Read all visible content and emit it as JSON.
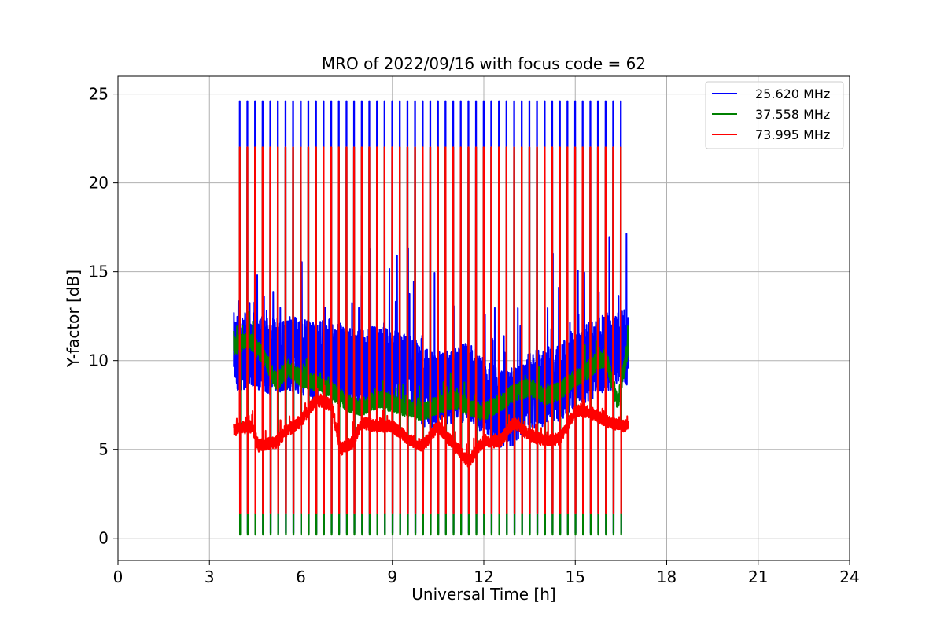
{
  "chart_data": {
    "type": "line",
    "title": "MRO of 2022/09/16 with focus code = 62",
    "xlabel": "Universal Time [h]",
    "ylabel": "Y-factor [dB]",
    "xlim": [
      0,
      24
    ],
    "ylim": [
      -1.25,
      26.0
    ],
    "xticks": [
      0,
      3,
      6,
      9,
      12,
      15,
      18,
      21,
      24
    ],
    "yticks": [
      0,
      5,
      10,
      15,
      20,
      25
    ],
    "grid": true,
    "legend_position": "top-right",
    "x_range_covered": [
      3.8,
      16.75
    ],
    "calibration_pulses": {
      "start_h": 4.0,
      "spacing_h": 0.25,
      "count": 51,
      "peak_values": {
        "25.620 MHz": 24.6,
        "37.558 MHz": 22.0,
        "73.995 MHz": 22.0
      },
      "trough_values": {
        "25.620 MHz": 0.3,
        "37.558 MHz": 0.2,
        "73.995 MHz": 1.4
      }
    },
    "series": [
      {
        "name": "25.620 MHz",
        "color": "#0000ff",
        "baseline": [
          [
            3.8,
            10.5
          ],
          [
            4.5,
            10.6
          ],
          [
            5.0,
            10.2
          ],
          [
            5.5,
            10.5
          ],
          [
            6.0,
            10.3
          ],
          [
            6.5,
            10.0
          ],
          [
            7.0,
            10.2
          ],
          [
            7.5,
            9.7
          ],
          [
            8.0,
            9.5
          ],
          [
            8.5,
            9.8
          ],
          [
            9.0,
            9.6
          ],
          [
            9.5,
            9.3
          ],
          [
            10.0,
            8.5
          ],
          [
            10.5,
            8.3
          ],
          [
            11.0,
            8.6
          ],
          [
            11.5,
            8.8
          ],
          [
            12.0,
            8.0
          ],
          [
            12.5,
            7.3
          ],
          [
            13.0,
            7.4
          ],
          [
            13.5,
            8.3
          ],
          [
            14.0,
            8.5
          ],
          [
            14.5,
            8.8
          ],
          [
            15.0,
            9.5
          ],
          [
            15.5,
            10.0
          ],
          [
            16.0,
            10.5
          ],
          [
            16.5,
            10.6
          ],
          [
            16.75,
            10.8
          ]
        ],
        "fluctuation_db": 2.2
      },
      {
        "name": "37.558 MHz",
        "color": "#008000",
        "baseline": [
          [
            3.8,
            10.8
          ],
          [
            4.3,
            11.2
          ],
          [
            4.8,
            10.2
          ],
          [
            5.2,
            8.8
          ],
          [
            5.6,
            9.6
          ],
          [
            6.0,
            9.0
          ],
          [
            6.5,
            8.7
          ],
          [
            7.0,
            8.3
          ],
          [
            7.5,
            7.6
          ],
          [
            8.0,
            7.4
          ],
          [
            8.5,
            7.8
          ],
          [
            9.0,
            7.6
          ],
          [
            9.5,
            7.3
          ],
          [
            10.0,
            7.1
          ],
          [
            10.5,
            7.5
          ],
          [
            11.0,
            7.8
          ],
          [
            11.5,
            7.4
          ],
          [
            12.0,
            7.1
          ],
          [
            12.5,
            7.6
          ],
          [
            13.0,
            8.2
          ],
          [
            13.5,
            8.5
          ],
          [
            14.0,
            8.0
          ],
          [
            14.5,
            8.3
          ],
          [
            15.0,
            9.0
          ],
          [
            15.5,
            9.6
          ],
          [
            16.0,
            10.2
          ],
          [
            16.4,
            7.6
          ],
          [
            16.75,
            11.0
          ]
        ],
        "fluctuation_db": 0.5
      },
      {
        "name": "73.995 MHz",
        "color": "#ff0000",
        "baseline": [
          [
            3.8,
            6.1
          ],
          [
            4.4,
            6.3
          ],
          [
            4.6,
            5.2
          ],
          [
            5.2,
            5.4
          ],
          [
            5.5,
            6.0
          ],
          [
            6.0,
            6.6
          ],
          [
            6.5,
            7.8
          ],
          [
            7.0,
            7.5
          ],
          [
            7.3,
            5.0
          ],
          [
            7.7,
            5.4
          ],
          [
            8.0,
            6.5
          ],
          [
            8.5,
            6.3
          ],
          [
            9.0,
            6.3
          ],
          [
            9.5,
            5.6
          ],
          [
            10.0,
            5.2
          ],
          [
            10.5,
            6.3
          ],
          [
            11.0,
            5.3
          ],
          [
            11.5,
            4.3
          ],
          [
            12.0,
            5.5
          ],
          [
            12.5,
            5.4
          ],
          [
            13.0,
            6.5
          ],
          [
            13.5,
            5.8
          ],
          [
            14.0,
            5.5
          ],
          [
            14.5,
            5.6
          ],
          [
            15.0,
            7.2
          ],
          [
            15.5,
            7.1
          ],
          [
            16.0,
            6.6
          ],
          [
            16.5,
            6.3
          ],
          [
            16.75,
            6.4
          ]
        ],
        "fluctuation_db": 0.35
      }
    ]
  }
}
